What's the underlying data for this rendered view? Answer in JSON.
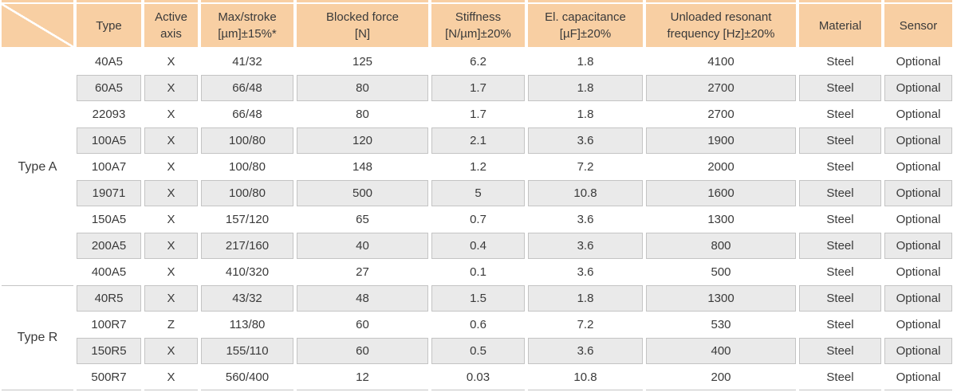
{
  "colors": {
    "header_bg": "#f8cfa3",
    "stripe_bg": "#eaeaea",
    "stripe_border": "#c4c4c4",
    "text": "#3a3a3a",
    "page_bg": "#ffffff"
  },
  "table": {
    "corner_label": "",
    "columns": [
      "Type",
      "Active\naxis",
      "Max/stroke\n[µm]±15%*",
      "Blocked force\n[N]",
      "Stiffness\n[N/µm]±20%",
      "El. capacitance\n[µF]±20%",
      "Unloaded resonant\nfrequency [Hz]±20%",
      "Material",
      "Sensor"
    ],
    "groups": [
      {
        "label": "Type A",
        "rows": [
          [
            "40A5",
            "X",
            "41/32",
            "125",
            "6.2",
            "1.8",
            "4100",
            "Steel",
            "Optional"
          ],
          [
            "60A5",
            "X",
            "66/48",
            "80",
            "1.7",
            "1.8",
            "2700",
            "Steel",
            "Optional"
          ],
          [
            "22093",
            "X",
            "66/48",
            "80",
            "1.7",
            "1.8",
            "2700",
            "Steel",
            "Optional"
          ],
          [
            "100A5",
            "X",
            "100/80",
            "120",
            "2.1",
            "3.6",
            "1900",
            "Steel",
            "Optional"
          ],
          [
            "100A7",
            "X",
            "100/80",
            "148",
            "1.2",
            "7.2",
            "2000",
            "Steel",
            "Optional"
          ],
          [
            "19071",
            "X",
            "100/80",
            "500",
            "5",
            "10.8",
            "1600",
            "Steel",
            "Optional"
          ],
          [
            "150A5",
            "X",
            "157/120",
            "65",
            "0.7",
            "3.6",
            "1300",
            "Steel",
            "Optional"
          ],
          [
            "200A5",
            "X",
            "217/160",
            "40",
            "0.4",
            "3.6",
            "800",
            "Steel",
            "Optional"
          ],
          [
            "400A5",
            "X",
            "410/320",
            "27",
            "0.1",
            "3.6",
            "500",
            "Steel",
            "Optional"
          ]
        ]
      },
      {
        "label": "Type R",
        "rows": [
          [
            "40R5",
            "X",
            "43/32",
            "48",
            "1.5",
            "1.8",
            "1300",
            "Steel",
            "Optional"
          ],
          [
            "100R7",
            "Z",
            "113/80",
            "60",
            "0.6",
            "7.2",
            "530",
            "Steel",
            "Optional"
          ],
          [
            "150R5",
            "X",
            "155/110",
            "60",
            "0.5",
            "3.6",
            "400",
            "Steel",
            "Optional"
          ],
          [
            "500R7",
            "X",
            "560/400",
            "12",
            "0.03",
            "10.8",
            "200",
            "Steel",
            "Optional"
          ]
        ]
      }
    ]
  }
}
